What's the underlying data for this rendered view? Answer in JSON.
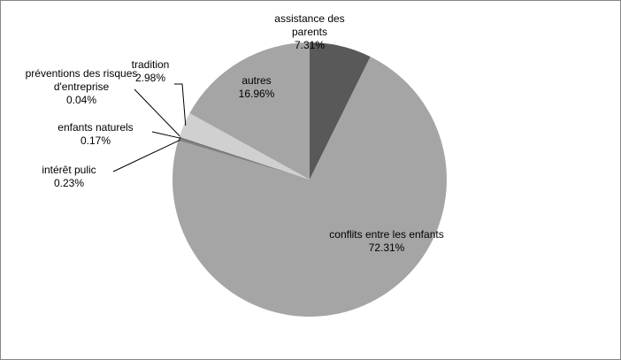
{
  "chart_data": {
    "type": "pie",
    "categories": [
      "assistance des parents",
      "conflits entre les enfants",
      "intérêt pulic",
      "enfants naturels",
      "préventions des risques d'entreprise",
      "tradition",
      "autres"
    ],
    "values": [
      7.31,
      72.31,
      0.23,
      0.17,
      0.04,
      2.98,
      16.96
    ],
    "value_labels": [
      "7.31%",
      "72.31%",
      "0.23%",
      "0.17%",
      "0.04%",
      "2.98%",
      "16.96%"
    ],
    "colors": [
      "#595959",
      "#a5a5a5",
      "#7f7f7f",
      "#6e6e6e",
      "#8c8c8c",
      "#d0d0d0",
      "#a5a5a5"
    ]
  }
}
